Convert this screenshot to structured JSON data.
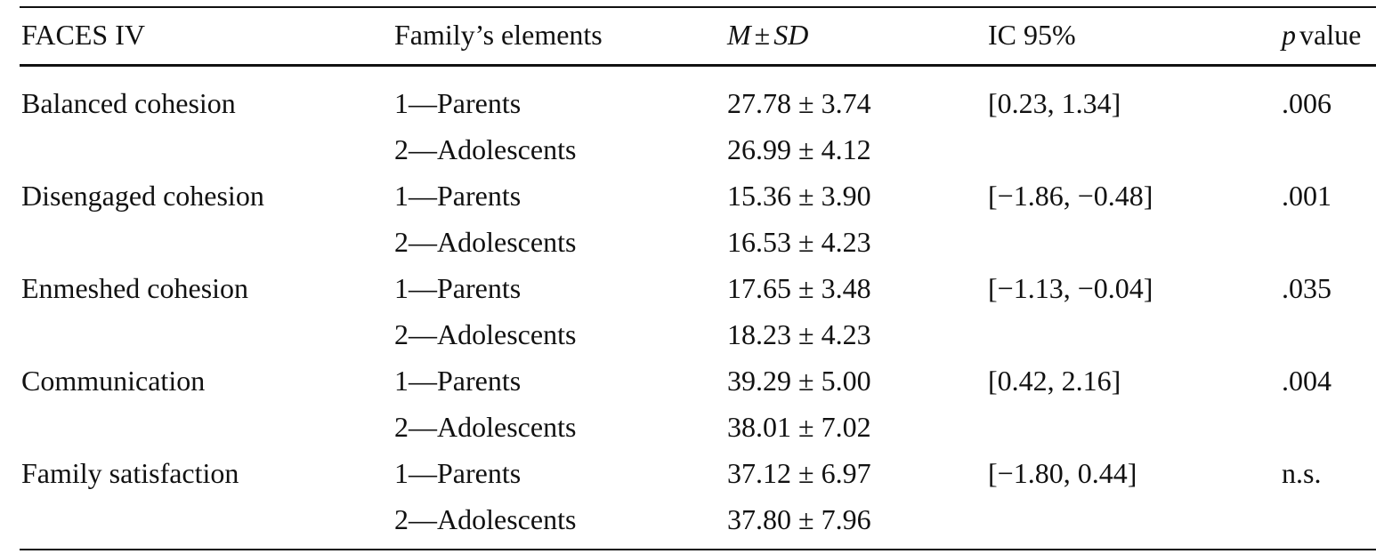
{
  "table": {
    "header": [
      [
        {
          "text": "FACES IV",
          "italic": false
        }
      ],
      [
        {
          "text": "Family’s elements",
          "italic": false
        }
      ],
      [
        {
          "text": "M",
          "italic": true
        },
        {
          "text": "±",
          "italic": false
        },
        {
          "text": "SD",
          "italic": true
        }
      ],
      [
        {
          "text": "IC 95%",
          "italic": false
        }
      ],
      [
        {
          "text": "p",
          "italic": true
        },
        {
          "text": "value",
          "italic": false
        }
      ]
    ],
    "groups": [
      {
        "scale": "Balanced cohesion",
        "members": [
          {
            "element": "1—Parents",
            "mean_sd": "27.78 ± 3.74"
          },
          {
            "element": "2—Adolescents",
            "mean_sd": "26.99 ± 4.12"
          }
        ],
        "ci": "[0.23, 1.34]",
        "p": ".006"
      },
      {
        "scale": "Disengaged cohesion",
        "members": [
          {
            "element": "1—Parents",
            "mean_sd": "15.36 ± 3.90"
          },
          {
            "element": "2—Adolescents",
            "mean_sd": "16.53 ± 4.23"
          }
        ],
        "ci": "[−1.86, −0.48]",
        "p": ".001"
      },
      {
        "scale": "Enmeshed cohesion",
        "members": [
          {
            "element": "1—Parents",
            "mean_sd": "17.65 ± 3.48"
          },
          {
            "element": "2—Adolescents",
            "mean_sd": "18.23 ± 4.23"
          }
        ],
        "ci": "[−1.13, −0.04]",
        "p": ".035"
      },
      {
        "scale": "Communication",
        "members": [
          {
            "element": "1—Parents",
            "mean_sd": "39.29 ± 5.00"
          },
          {
            "element": "2—Adolescents",
            "mean_sd": "38.01 ± 7.02"
          }
        ],
        "ci": "[0.42, 2.16]",
        "p": ".004"
      },
      {
        "scale": "Family satisfaction",
        "members": [
          {
            "element": "1—Parents",
            "mean_sd": "37.12 ± 6.97"
          },
          {
            "element": "2—Adolescents",
            "mean_sd": "37.80 ± 7.96"
          }
        ],
        "ci": "[−1.80, 0.44]",
        "p": "n.s."
      }
    ]
  }
}
